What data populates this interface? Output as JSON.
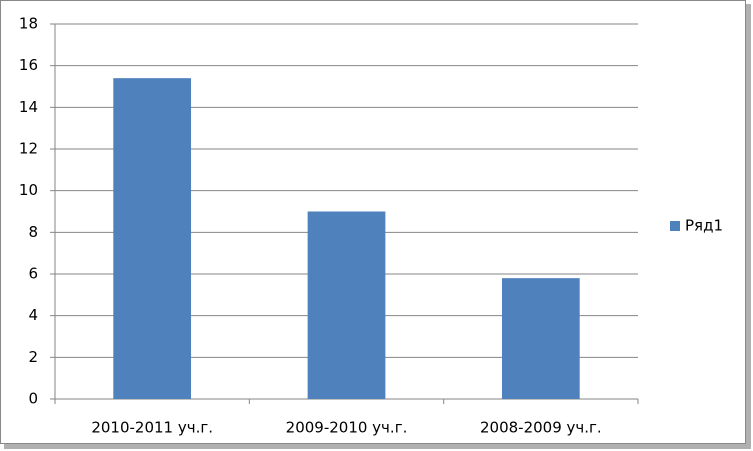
{
  "chart_data": {
    "type": "bar",
    "categories": [
      "2010-2011 уч.г.",
      "2009-2010 уч.г.",
      "2008-2009 уч.г."
    ],
    "series": [
      {
        "name": "Ряд1",
        "color": "#4f81bd",
        "values": [
          15.4,
          9,
          5.8
        ]
      }
    ],
    "ylim": [
      0,
      18
    ],
    "yticks": [
      0,
      2,
      4,
      6,
      8,
      10,
      12,
      14,
      16,
      18
    ],
    "grid": true,
    "legend": "right"
  }
}
